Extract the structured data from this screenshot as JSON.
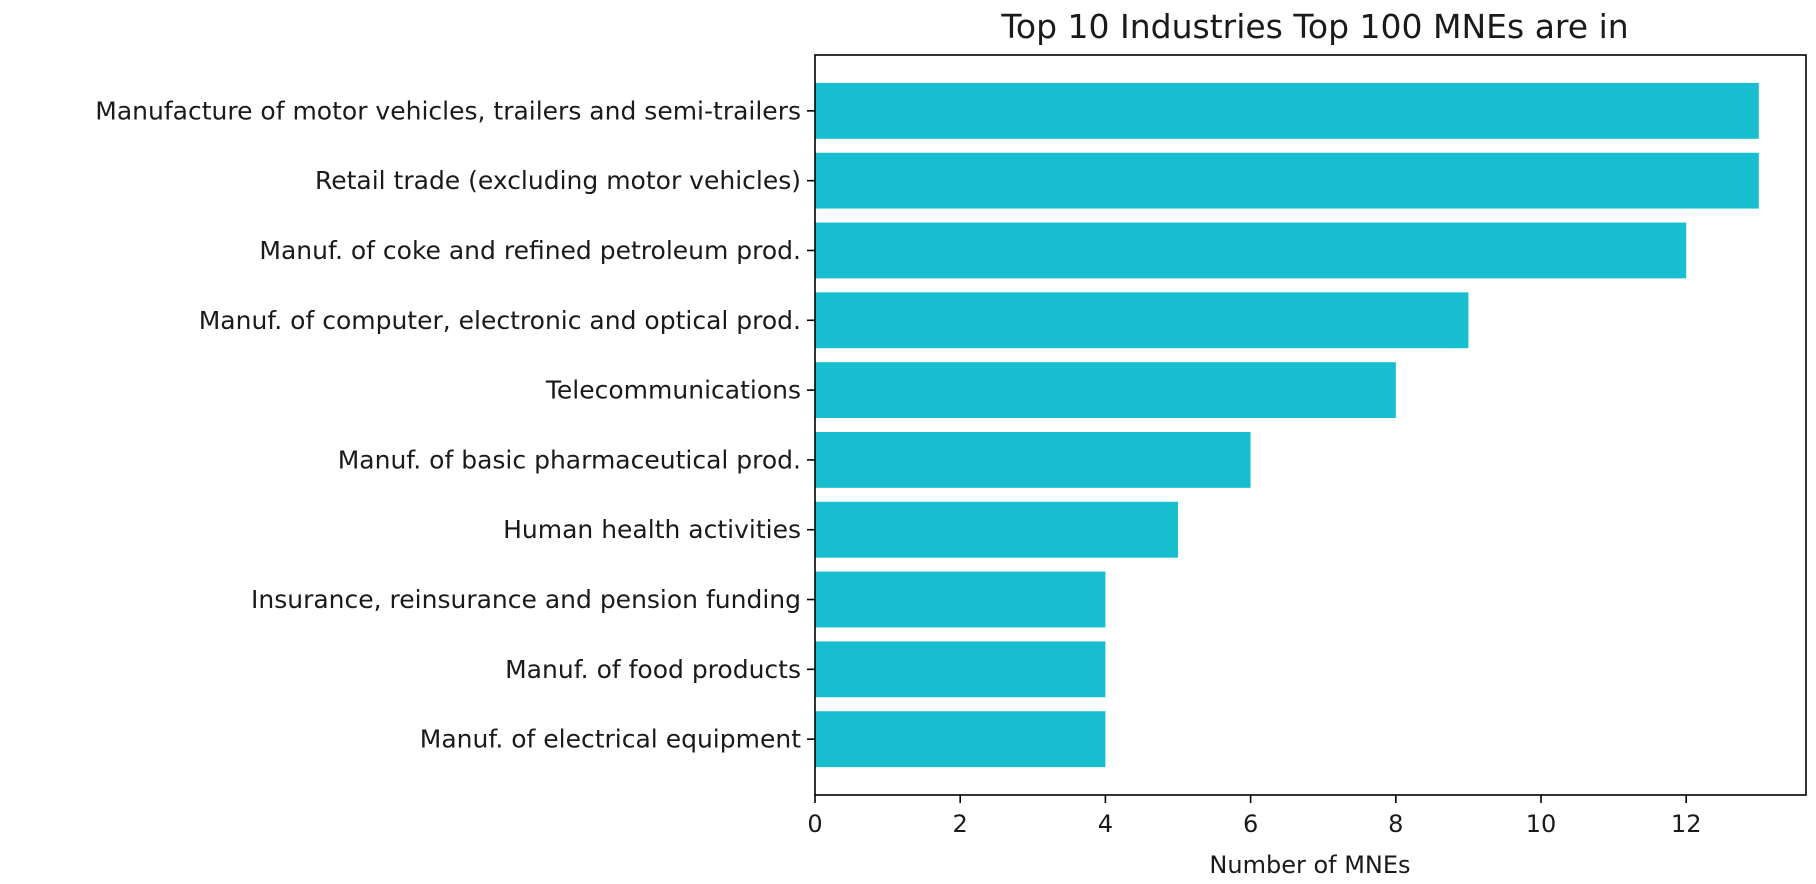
{
  "chart_data": {
    "type": "bar",
    "orientation": "horizontal",
    "title": "Top 10 Industries Top 100 MNEs are in",
    "xlabel": "Number of MNEs",
    "ylabel": "",
    "categories": [
      "Manufacture of motor vehicles, trailers and semi-trailers",
      "Retail trade (excluding motor vehicles)",
      "Manuf. of coke and refined petroleum prod.",
      "Manuf. of computer, electronic and optical prod.",
      "Telecommunications",
      "Manuf. of basic pharmaceutical prod.",
      "Human health activities",
      "Insurance, reinsurance and pension funding",
      "Manuf. of food products",
      "Manuf. of electrical equipment"
    ],
    "values": [
      13,
      13,
      12,
      9,
      8,
      6,
      5,
      4,
      4,
      4
    ],
    "xlim": [
      0,
      13.65
    ],
    "xticks": [
      0,
      2,
      4,
      6,
      8,
      10,
      12
    ],
    "bar_color": "#17becf",
    "grid": false,
    "legend": "none"
  }
}
